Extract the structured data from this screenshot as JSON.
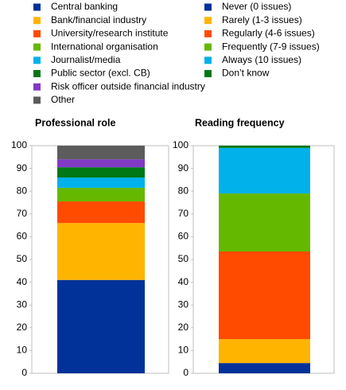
{
  "chart_data": [
    {
      "type": "stacked_bar",
      "title": "Professional role",
      "categories": [
        null
      ],
      "ylim": [
        0,
        100
      ],
      "yticks": [
        0,
        10,
        20,
        30,
        40,
        50,
        60,
        70,
        80,
        90,
        100
      ],
      "series": [
        {
          "name": "Central banking",
          "color": "#003299",
          "values": [
            41
          ]
        },
        {
          "name": "Bank/financial industry",
          "color": "#ffb400",
          "values": [
            25
          ]
        },
        {
          "name": "University/research institute",
          "color": "#ff4b00",
          "values": [
            9.5
          ]
        },
        {
          "name": "International organisation",
          "color": "#65b800",
          "values": [
            6
          ]
        },
        {
          "name": "Journalist/media",
          "color": "#00b1ea",
          "values": [
            4.5
          ]
        },
        {
          "name": "Public sector (excl. CB)",
          "color": "#007816",
          "values": [
            4.5
          ]
        },
        {
          "name": "Risk officer outside financial industry",
          "color": "#8139c6",
          "values": [
            3.5
          ]
        },
        {
          "name": "Other",
          "color": "#5c5c5c",
          "values": [
            6
          ]
        }
      ]
    },
    {
      "type": "stacked_bar",
      "title": "Reading frequency",
      "categories": [
        null
      ],
      "ylim": [
        0,
        100
      ],
      "yticks": [
        0,
        10,
        20,
        30,
        40,
        50,
        60,
        70,
        80,
        90,
        100
      ],
      "series": [
        {
          "name": "Never (0 issues)",
          "color": "#003299",
          "values": [
            4.5
          ]
        },
        {
          "name": "Rarely (1-3 issues)",
          "color": "#ffb400",
          "values": [
            10.5
          ]
        },
        {
          "name": "Regularly (4-6 issues)",
          "color": "#ff4b00",
          "values": [
            38.5
          ]
        },
        {
          "name": "Frequently (7-9 issues)",
          "color": "#65b800",
          "values": [
            25.5
          ]
        },
        {
          "name": "Always (10 issues)",
          "color": "#00b1ea",
          "values": [
            20
          ]
        },
        {
          "name": "Don’t know",
          "color": "#007816",
          "values": [
            1
          ]
        }
      ]
    }
  ]
}
